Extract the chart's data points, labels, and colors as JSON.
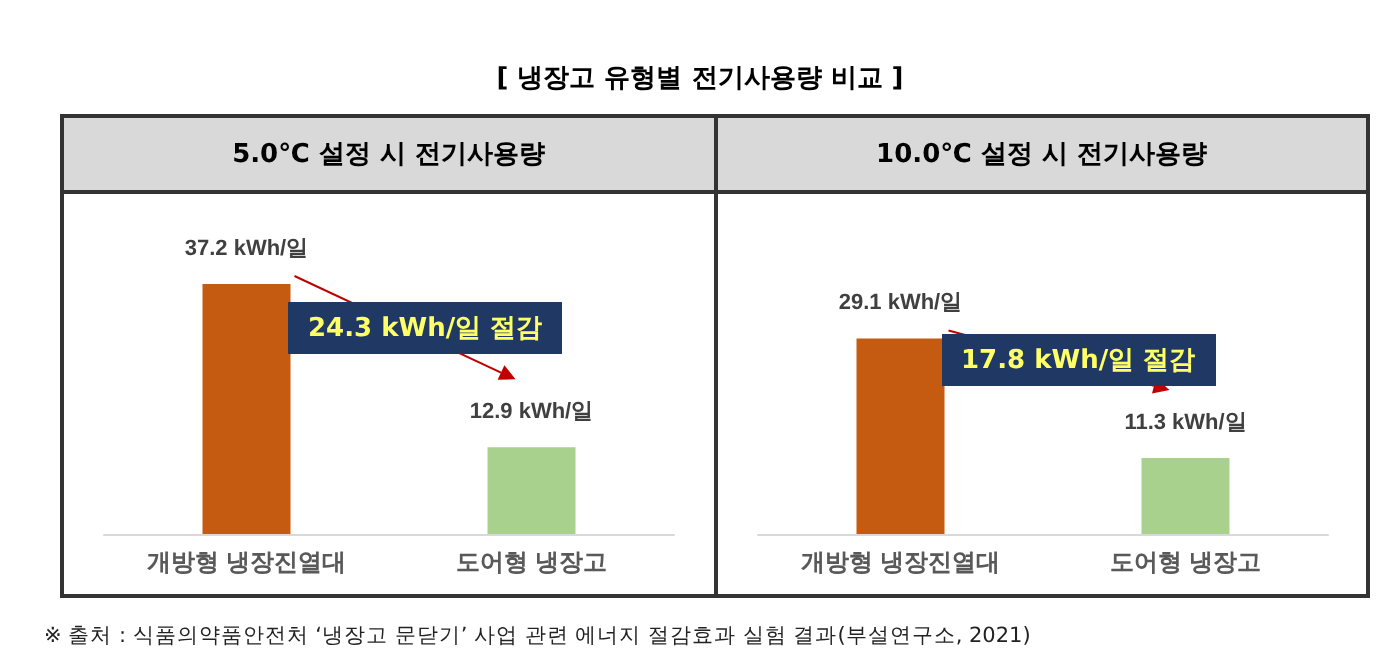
{
  "chart_data": [
    {
      "type": "other",
      "title": "[ 냉장고 유형별 전기사용량 비교 ]",
      "annotations": [
        "※ 출처 : 식품의약품안전처 ‘냉장고 문닫기’ 사업 관련 에너지 절감효과 실험 결과(부설연구소, 2021)"
      ]
    },
    {
      "type": "bar",
      "title": "5.0℃ 설정 시 전기사용량",
      "categories": [
        "개방형 냉장진열대",
        "도어형 냉장고"
      ],
      "values": [
        37.2,
        12.9
      ],
      "colors": [
        "#c55a11",
        "#a9d18e"
      ],
      "value_labels": [
        "37.2 kWh/일",
        "12.9 kWh/일"
      ],
      "annotations": [
        "24.3 kWh/일 절감"
      ]
    },
    {
      "type": "bar",
      "title": "10.0℃ 설정 시 전기사용량",
      "categories": [
        "개방형 냉장진열대",
        "도어형 냉장고"
      ],
      "values": [
        29.1,
        11.3
      ],
      "colors": [
        "#c55a11",
        "#a9d18e"
      ],
      "value_labels": [
        "29.1 kWh/일",
        "11.3 kWh/일"
      ],
      "annotations": [
        "17.8 kWh/일 절감"
      ]
    }
  ]
}
